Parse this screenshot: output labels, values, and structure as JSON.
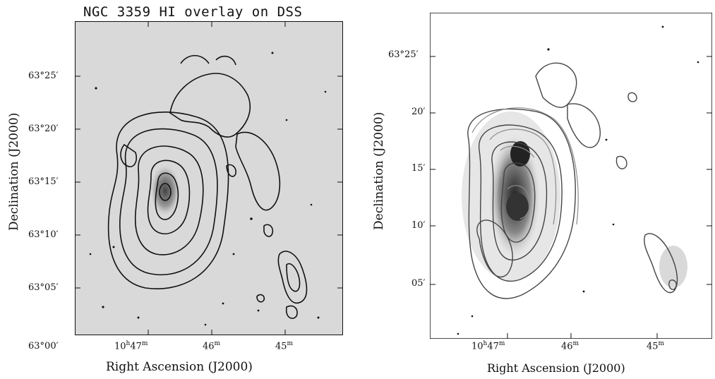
{
  "left_panel": {
    "title": "NGC 3359 HI overlay on DSS",
    "xlabel": "Right Ascension (J2000)",
    "ylabel": "Declination (J2000)",
    "yticks": [
      "63°25′",
      "63°20′",
      "63°15′",
      "63°10′",
      "63°05′",
      "63°00′"
    ],
    "xticks": [
      {
        "h": "10",
        "hu": "h",
        "m": "47",
        "mu": "m"
      },
      {
        "m": "46",
        "mu": "m"
      },
      {
        "m": "45",
        "mu": "m"
      }
    ]
  },
  "right_panel": {
    "xlabel": "Right Ascension (J2000)",
    "ylabel": "Declination (J2000)",
    "yticks": [
      "63°25′",
      "20′",
      "15′",
      "10′",
      "05′"
    ],
    "xticks": [
      {
        "h": "10",
        "hu": "h",
        "m": "47",
        "mu": "m"
      },
      {
        "m": "46",
        "mu": "m"
      },
      {
        "m": "45",
        "mu": "m"
      }
    ]
  },
  "colors": {
    "left_background": "#d9d9d9",
    "right_background": "#ffffff",
    "contour": "#111111",
    "contour_light": "#8a8a8a"
  }
}
